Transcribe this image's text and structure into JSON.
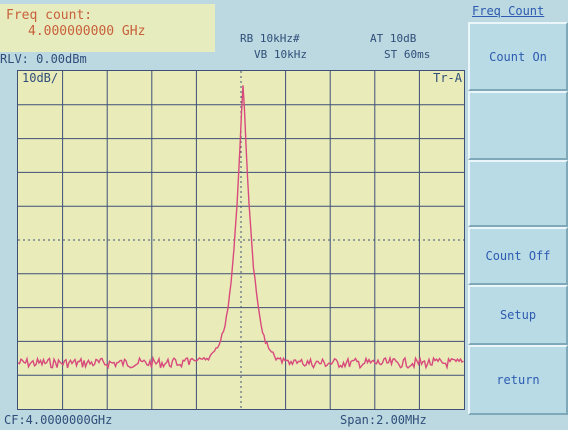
{
  "marker": {
    "title": "Freq count:",
    "value": "4.000000000 GHz"
  },
  "reference_level": "RLV: 0.00dBm",
  "settings": {
    "rb": "RB 10kHz#",
    "at": "AT 10dB",
    "vb": "VB 10kHz",
    "st": "ST 60ms"
  },
  "plot": {
    "scale": "10dB/",
    "trace": "Tr-A"
  },
  "footer": {
    "center_freq": "CF:4.0000000GHz",
    "span": "Span:2.00MHz"
  },
  "softkeys": {
    "title": "Freq Count",
    "items": [
      "Count On",
      "",
      "",
      "Count Off",
      "Setup",
      "return"
    ]
  },
  "colors": {
    "trace": "#d84a7c",
    "grid": "#3e4f78",
    "background": "#e9ecb9",
    "label": "#2f4f7a"
  }
}
